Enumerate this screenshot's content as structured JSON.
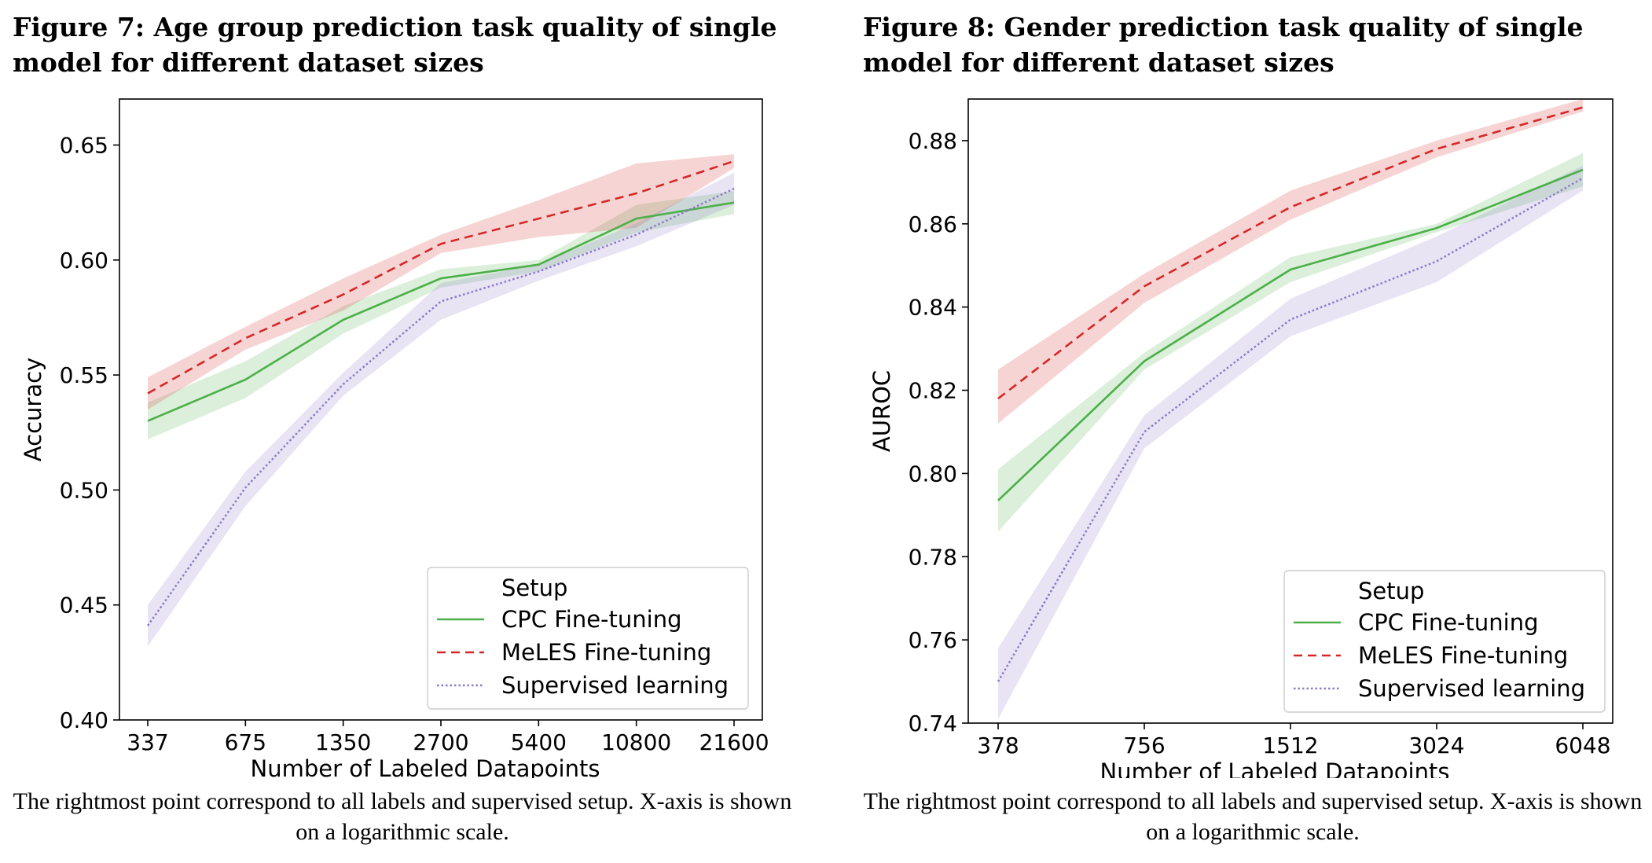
{
  "figures": [
    {
      "title": "Figure 7: Age group prediction task quality of single model for different dataset sizes",
      "caption": "The rightmost point correspond to all labels and supervised setup. X-axis is shown on a logarithmic scale."
    },
    {
      "title": "Figure 8: Gender prediction task quality of single model for different dataset sizes",
      "caption": "The rightmost point correspond to all labels and supervised setup. X-axis is shown on a logarithmic scale."
    }
  ],
  "chart_data": [
    {
      "type": "line",
      "x_scale": "log",
      "x": [
        "337",
        "675",
        "1350",
        "2700",
        "5400",
        "10800",
        "21600"
      ],
      "xlabel": "Number of Labeled Datapoints",
      "ylabel": "Accuracy",
      "ylim": [
        0.4,
        0.67
      ],
      "yticks": [
        "0.40",
        "0.45",
        "0.50",
        "0.55",
        "0.60",
        "0.65"
      ],
      "grid": false,
      "legend": {
        "title": "Setup",
        "position": "lower-right"
      },
      "series": [
        {
          "name": "CPC Fine-tuning",
          "color": "#4daf4a",
          "style": "solid",
          "values": [
            0.53,
            0.548,
            0.574,
            0.592,
            0.598,
            0.618,
            0.625
          ],
          "lower": [
            0.522,
            0.54,
            0.568,
            0.588,
            0.595,
            0.612,
            0.62
          ],
          "upper": [
            0.538,
            0.556,
            0.58,
            0.596,
            0.6,
            0.624,
            0.63
          ]
        },
        {
          "name": "MeLES Fine-tuning",
          "color": "#d62728",
          "style": "dashed",
          "values": [
            0.542,
            0.566,
            0.585,
            0.607,
            0.618,
            0.629,
            0.643
          ],
          "lower": [
            0.535,
            0.561,
            0.578,
            0.603,
            0.61,
            0.614,
            0.64
          ],
          "upper": [
            0.549,
            0.571,
            0.592,
            0.611,
            0.626,
            0.642,
            0.646
          ]
        },
        {
          "name": "Supervised learning",
          "color": "#8c78c8",
          "style": "dotted",
          "values": [
            0.441,
            0.501,
            0.546,
            0.582,
            0.595,
            0.611,
            0.631
          ],
          "lower": [
            0.432,
            0.493,
            0.541,
            0.574,
            0.591,
            0.606,
            0.624
          ],
          "upper": [
            0.45,
            0.508,
            0.551,
            0.59,
            0.598,
            0.616,
            0.638
          ]
        }
      ]
    },
    {
      "type": "line",
      "x_scale": "log",
      "x": [
        "378",
        "756",
        "1512",
        "3024",
        "6048"
      ],
      "xlabel": "Number of Labeled Datapoints",
      "ylabel": "AUROC",
      "ylim": [
        0.74,
        0.89
      ],
      "yticks": [
        "0.74",
        "0.76",
        "0.78",
        "0.80",
        "0.82",
        "0.84",
        "0.86",
        "0.88"
      ],
      "grid": false,
      "legend": {
        "title": "Setup",
        "position": "lower-right"
      },
      "series": [
        {
          "name": "CPC Fine-tuning",
          "color": "#4daf4a",
          "style": "solid",
          "values": [
            0.7935,
            0.827,
            0.849,
            0.859,
            0.873
          ],
          "lower": [
            0.786,
            0.825,
            0.846,
            0.858,
            0.869
          ],
          "upper": [
            0.801,
            0.829,
            0.852,
            0.86,
            0.877
          ]
        },
        {
          "name": "MeLES Fine-tuning",
          "color": "#d62728",
          "style": "dashed",
          "values": [
            0.818,
            0.845,
            0.864,
            0.878,
            0.888
          ],
          "lower": [
            0.812,
            0.841,
            0.861,
            0.876,
            0.887
          ],
          "upper": [
            0.825,
            0.848,
            0.868,
            0.88,
            0.89
          ]
        },
        {
          "name": "Supervised learning",
          "color": "#8c78c8",
          "style": "dotted",
          "values": [
            0.75,
            0.81,
            0.837,
            0.851,
            0.871
          ],
          "lower": [
            0.741,
            0.806,
            0.833,
            0.846,
            0.868
          ],
          "upper": [
            0.758,
            0.814,
            0.842,
            0.857,
            0.874
          ]
        }
      ]
    }
  ]
}
